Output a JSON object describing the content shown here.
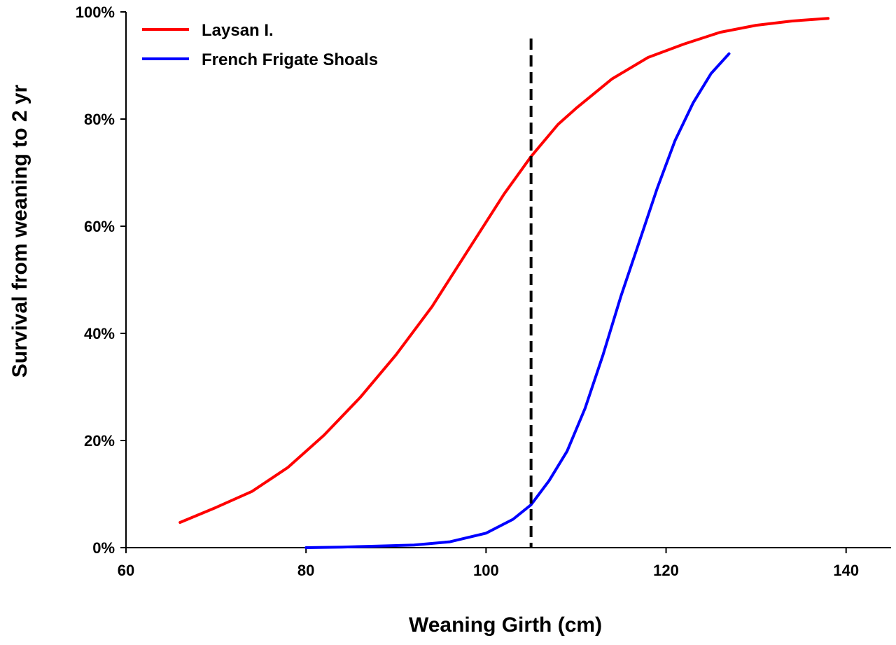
{
  "chart_data": {
    "type": "line",
    "xlabel": "Weaning Girth (cm)",
    "ylabel": "Survival from weaning to 2 yr",
    "xlim": [
      60,
      145
    ],
    "ylim": [
      0,
      1
    ],
    "x_ticks": [
      60,
      80,
      100,
      120,
      140
    ],
    "x_tick_labels": [
      "60",
      "80",
      "100",
      "120",
      "140"
    ],
    "y_ticks": [
      0,
      0.2,
      0.4,
      0.6,
      0.8,
      1.0
    ],
    "y_tick_labels": [
      "0%",
      "20%",
      "40%",
      "60%",
      "80%",
      "100%"
    ],
    "legend_position": "top-left",
    "grid": false,
    "reference_line": {
      "x": 105,
      "style": "dashed",
      "color": "#000000"
    },
    "series": [
      {
        "name": "Laysan I.",
        "color": "#ff0000",
        "x": [
          66,
          70,
          74,
          78,
          82,
          86,
          90,
          94,
          98,
          102,
          105,
          108,
          110,
          114,
          118,
          122,
          126,
          130,
          134,
          138
        ],
        "y": [
          0.047,
          0.075,
          0.105,
          0.15,
          0.21,
          0.28,
          0.36,
          0.45,
          0.555,
          0.66,
          0.73,
          0.79,
          0.82,
          0.875,
          0.915,
          0.94,
          0.962,
          0.975,
          0.983,
          0.988
        ]
      },
      {
        "name": "French Frigate Shoals",
        "color": "#0000ff",
        "x": [
          80,
          84,
          88,
          92,
          96,
          100,
          103,
          105,
          107,
          109,
          111,
          113,
          115,
          117,
          119,
          121,
          123,
          125,
          127
        ],
        "y": [
          0.0,
          0.001,
          0.003,
          0.005,
          0.011,
          0.027,
          0.053,
          0.08,
          0.125,
          0.18,
          0.26,
          0.36,
          0.47,
          0.57,
          0.67,
          0.76,
          0.83,
          0.885,
          0.922
        ]
      }
    ]
  }
}
